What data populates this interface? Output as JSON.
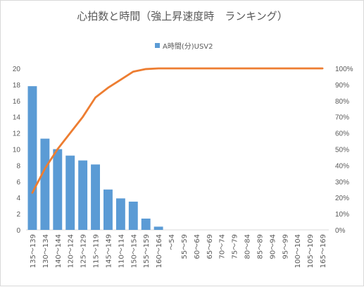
{
  "chart_data": {
    "type": "bar",
    "title": "心拍数と時間（強上昇速度時　ランキング）",
    "categories": [
      "135～139",
      "130～134",
      "140～144",
      "120～124",
      "125～129",
      "115～119",
      "145～149",
      "110～114",
      "150～154",
      "155～159",
      "160～164",
      "～54",
      "55～59",
      "60～64",
      "65～69",
      "70～74",
      "75～79",
      "80～84",
      "85～89",
      "90～94",
      "95～99",
      "100～104",
      "105～109",
      "165～169"
    ],
    "series": [
      {
        "name": "A時間(分)USV2",
        "kind": "bar",
        "axis": "left",
        "color": "#5b9bd5",
        "values": [
          17.8,
          11.3,
          10.0,
          9.2,
          8.6,
          8.1,
          5.0,
          3.9,
          3.5,
          1.4,
          0.4,
          0,
          0,
          0,
          0,
          0,
          0,
          0,
          0,
          0,
          0,
          0,
          0,
          0
        ]
      },
      {
        "kind": "line",
        "axis": "right",
        "color": "#ed7d31",
        "values": [
          23,
          38,
          50,
          60,
          70,
          82,
          88,
          93,
          98,
          99.6,
          100,
          100,
          100,
          100,
          100,
          100,
          100,
          100,
          100,
          100,
          100,
          100,
          100,
          100
        ]
      }
    ],
    "y_left": {
      "min": 0,
      "max": 20,
      "step": 2,
      "ticks": [
        "0",
        "2",
        "4",
        "6",
        "8",
        "10",
        "12",
        "14",
        "16",
        "18",
        "20"
      ]
    },
    "y_right": {
      "min": 0,
      "max": 100,
      "step": 10,
      "ticks": [
        "0%",
        "10%",
        "20%",
        "30%",
        "40%",
        "50%",
        "60%",
        "70%",
        "80%",
        "90%",
        "100%"
      ]
    },
    "xlabel": "",
    "ylabel": "",
    "grid": false,
    "legend_position": "top"
  }
}
